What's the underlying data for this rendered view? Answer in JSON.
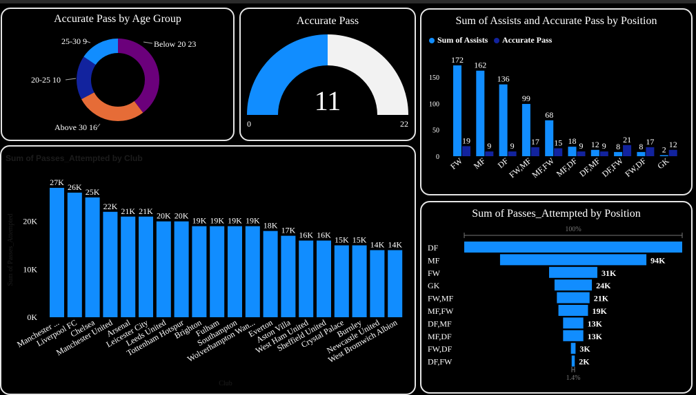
{
  "colors": {
    "blue": "#118dff",
    "navy": "#12239e",
    "orange": "#e66c37",
    "purple": "#6b007b",
    "white": "#f2f2f2"
  },
  "donut": {
    "title": "Accurate Pass by Age Group",
    "chart_data": {
      "type": "pie",
      "slices": [
        {
          "label": "Below 20",
          "value": 23,
          "color": "#6b007b"
        },
        {
          "label": "Above 30",
          "value": 16,
          "color": "#e66c37"
        },
        {
          "label": "20-25",
          "value": 10,
          "color": "#12239e"
        },
        {
          "label": "25-30",
          "value": 9,
          "color": "#118dff"
        }
      ],
      "labels_text": [
        "Below 20 23",
        "Above 30 16",
        "20-25 10",
        "25-30 9"
      ]
    }
  },
  "gauge": {
    "title": "Accurate Pass",
    "chart_data": {
      "type": "gauge",
      "value": 11,
      "min": 0,
      "max": 22
    },
    "value_text": "11",
    "min_text": "0",
    "max_text": "22"
  },
  "assists": {
    "title": "Sum of Assists and Accurate Pass by Position",
    "legend": [
      "Sum of Assists",
      "Accurate Pass"
    ],
    "chart_data": {
      "type": "bar",
      "categories": [
        "FW",
        "MF",
        "DF",
        "FW,MF",
        "MF,FW",
        "MF,DF",
        "DF,MF",
        "DF,FW",
        "FW,DF",
        "GK"
      ],
      "series": [
        {
          "name": "Sum of Assists",
          "values": [
            172,
            162,
            136,
            99,
            68,
            18,
            12,
            8,
            8,
            2
          ]
        },
        {
          "name": "Accurate Pass",
          "values": [
            19,
            9,
            9,
            17,
            15,
            9,
            9,
            21,
            17,
            12
          ]
        }
      ],
      "ylim": [
        0,
        180
      ],
      "yticks": [
        "0",
        "50",
        "100",
        "150"
      ]
    }
  },
  "clubs": {
    "title": "Sum of Passes_Attempted by Club",
    "xlabel": "Club",
    "ylabel": "Sum of Passes_Attempted",
    "chart_data": {
      "type": "bar",
      "categories": [
        "Manchester ...",
        "Liverpool FC",
        "Chelsea",
        "Manchester United",
        "Arsenal",
        "Leicester City",
        "Leeds United",
        "Tottenham Hotspur",
        "Brighton",
        "Fulham",
        "Southampton",
        "Wolverhampton Wan...",
        "Everton",
        "Aston Villa",
        "West Ham United",
        "Sheffield United",
        "Crystal Palace",
        "Burnley",
        "Newcastle United",
        "West Bromwich Albion"
      ],
      "values": [
        27000,
        26000,
        25000,
        22000,
        21000,
        21000,
        20000,
        20000,
        19000,
        19000,
        19000,
        19000,
        18000,
        17000,
        16000,
        16000,
        15000,
        15000,
        14000,
        14000
      ],
      "value_labels": [
        "27K",
        "26K",
        "25K",
        "22K",
        "21K",
        "21K",
        "20K",
        "20K",
        "19K",
        "19K",
        "19K",
        "19K",
        "18K",
        "17K",
        "16K",
        "16K",
        "15K",
        "15K",
        "14K",
        "14K"
      ],
      "yticks": [
        "0K",
        "10K",
        "20K"
      ],
      "ylim": [
        0,
        28000
      ]
    }
  },
  "funnel": {
    "title": "Sum of Passes_Attempted by Position",
    "top_pct": "100%",
    "bottom_pct": "1.4%",
    "chart_data": {
      "type": "bar",
      "categories": [
        "DF",
        "MF",
        "FW",
        "GK",
        "FW,MF",
        "MF,FW",
        "DF,MF",
        "MF,DF",
        "FW,DF",
        "DF,FW"
      ],
      "values": [
        140000,
        94000,
        31000,
        24000,
        21000,
        19000,
        13000,
        13000,
        3000,
        2000
      ],
      "value_labels": [
        "",
        "94K",
        "31K",
        "24K",
        "21K",
        "19K",
        "13K",
        "13K",
        "3K",
        "2K"
      ]
    }
  }
}
